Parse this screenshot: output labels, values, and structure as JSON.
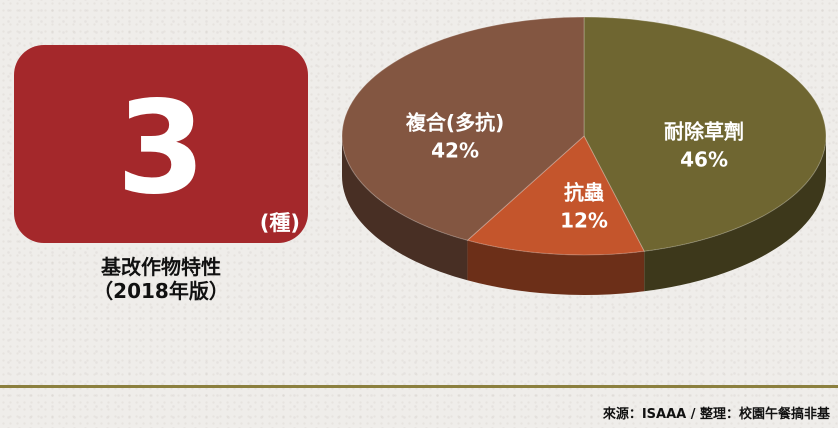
{
  "count_card": {
    "number": "3",
    "unit": "(種)"
  },
  "caption": {
    "line1": "基改作物特性",
    "line2": "（2018年版）"
  },
  "chart_data": {
    "type": "pie",
    "style": "3d",
    "slices": [
      {
        "label": "耐除草劑",
        "value": 46,
        "display": "46%",
        "color": "#6f6631"
      },
      {
        "label": "抗蟲",
        "value": 12,
        "display": "12%",
        "color": "#c4552c"
      },
      {
        "label": "複合(多抗)",
        "value": 42,
        "display": "42%",
        "color": "#835641"
      }
    ],
    "legend": "none",
    "labels": "inside-slices"
  },
  "footer": {
    "source": "來源：ISAAA / 整理：校園午餐搞非基"
  },
  "colors": {
    "card": "#a4282b",
    "divider": "#8b7f3e"
  }
}
